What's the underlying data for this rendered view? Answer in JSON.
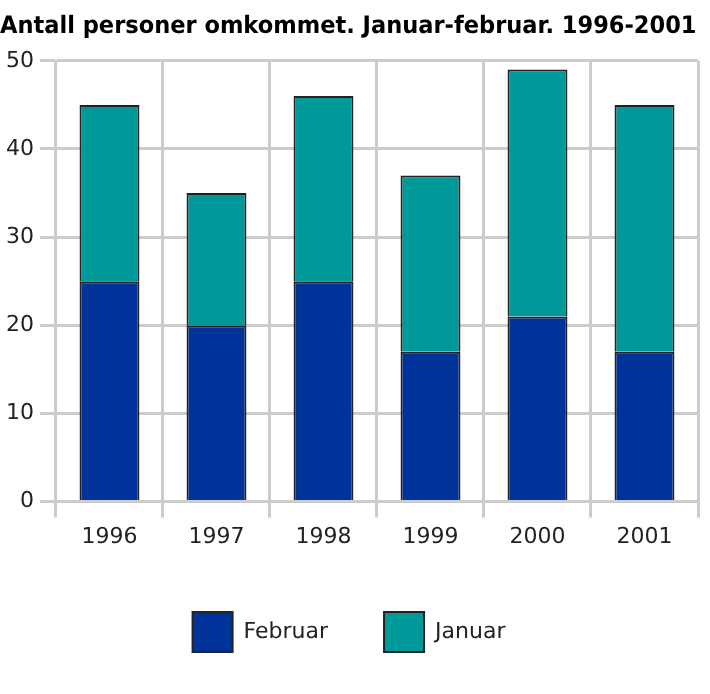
{
  "chart_data": {
    "type": "bar",
    "title": "Antall personer omkommet. Januar-februar. 1996-2001",
    "categories": [
      "1996",
      "1997",
      "1998",
      "1999",
      "2000",
      "2001"
    ],
    "series": [
      {
        "name": "Februar",
        "color": "#003399",
        "values": [
          25,
          20,
          25,
          17,
          21,
          17
        ]
      },
      {
        "name": "Januar",
        "color": "#009999",
        "values": [
          20,
          15,
          21,
          20,
          28,
          28
        ]
      }
    ],
    "stacked": true,
    "ylim": [
      0,
      50
    ],
    "yticks": [
      0,
      10,
      20,
      30,
      40,
      50
    ],
    "grid": true,
    "legend": "bottom"
  }
}
